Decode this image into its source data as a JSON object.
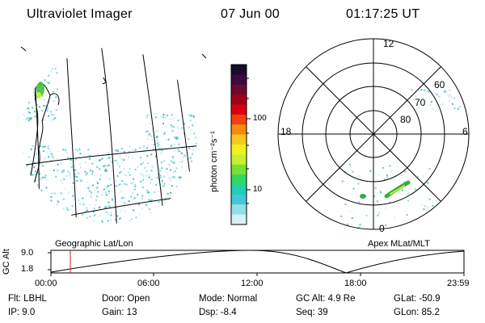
{
  "header": {
    "instrument": "Ultraviolet Imager",
    "date": "07 Jun 00",
    "time": "01:17:25 UT"
  },
  "panels": {
    "left_label": "Geographic Lat/Lon",
    "right_label": "Apex MLat/MLT"
  },
  "polar": {
    "mlt_labels": [
      "12",
      "18",
      "6",
      "0"
    ],
    "mlat_labels": [
      "60",
      "70",
      "80"
    ]
  },
  "colorbar": {
    "tick_labels": [
      "100",
      "10"
    ],
    "unit_label": "photon cm⁻²s⁻¹",
    "colors": [
      "#1a0a2e",
      "#3b0a3f",
      "#6a0a30",
      "#a00018",
      "#d80010",
      "#f04010",
      "#f58a10",
      "#f7c820",
      "#f0f020",
      "#c8f030",
      "#7ce030",
      "#30d860",
      "#20d0b0",
      "#40c8d8",
      "#90e0e8",
      "#d8f0f4"
    ]
  },
  "altitude_plot": {
    "ylabel": "GC Alt",
    "yticks": [
      "9.0",
      "1.8"
    ],
    "xticks": [
      "00:00",
      "06:00",
      "12:00",
      "18:00",
      "23:59"
    ]
  },
  "status": {
    "filter": "Flt: LBHL",
    "ip": "IP: 9.0",
    "door": "Door: Open",
    "gain": "Gain: 13",
    "mode": "Mode: Normal",
    "dsp": "Dsp:   -8.4",
    "gcalt": "GC Alt: 4.9 Re",
    "seq": "Seq: 39",
    "glat": "GLat: -50.9",
    "glon": "GLon:  85.2"
  }
}
